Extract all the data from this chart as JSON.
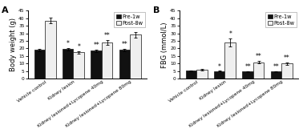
{
  "panel_A": {
    "title": "A",
    "ylabel": "Body weight (g)",
    "ylim": [
      0,
      45
    ],
    "yticks": [
      0,
      5,
      10,
      15,
      20,
      25,
      30,
      35,
      40,
      45
    ],
    "xticklabels": [
      "Vehicle control",
      "Kidney lesion",
      "Kidney lesioned+Lycopene 40mg",
      "Kidney lesioned+Lycopene 80mg"
    ],
    "pre_values": [
      19.0,
      19.5,
      18.5,
      19.0
    ],
    "post_values": [
      38.5,
      17.5,
      24.0,
      29.0
    ],
    "pre_errors": [
      0.7,
      0.7,
      0.7,
      0.7
    ],
    "post_errors": [
      1.8,
      0.9,
      1.5,
      2.0
    ],
    "pre_color": "#111111",
    "post_color": "#efefef",
    "significance_pre": [
      "",
      "*",
      "**",
      "**"
    ],
    "significance_post": [
      "",
      "*",
      "**",
      "**"
    ]
  },
  "panel_B": {
    "title": "B",
    "ylabel": "FBG (mmol/L)",
    "ylim": [
      0,
      45
    ],
    "yticks": [
      0,
      5,
      10,
      15,
      20,
      25,
      30,
      35,
      40,
      45
    ],
    "xticklabels": [
      "Vehicle control",
      "Kidney lesion",
      "Kidney lesioned+Lycopene 40mg",
      "Kidney lesioned+Lycopene 80mg"
    ],
    "pre_values": [
      5.2,
      5.0,
      4.8,
      4.8
    ],
    "post_values": [
      6.0,
      24.0,
      11.0,
      10.0
    ],
    "pre_errors": [
      0.3,
      0.3,
      0.3,
      0.3
    ],
    "post_errors": [
      0.4,
      2.5,
      0.9,
      0.8
    ],
    "pre_color": "#111111",
    "post_color": "#efefef",
    "significance_pre": [
      "",
      "*",
      "**",
      "**"
    ],
    "significance_post": [
      "",
      "*",
      "**",
      "**"
    ]
  },
  "legend_labels": [
    "Pre-1w",
    "Post-8w"
  ],
  "background_color": "#ffffff",
  "bar_width": 0.38,
  "edge_color": "#111111",
  "tick_fontsize": 4.2,
  "label_fontsize": 6.0,
  "title_fontsize": 8,
  "sig_fontsize": 5.5,
  "legend_fontsize": 4.8
}
